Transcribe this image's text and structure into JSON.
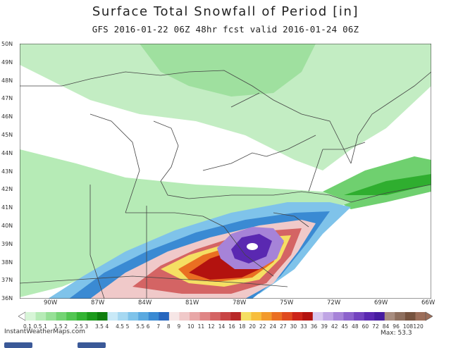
{
  "title": "Surface Total Snowfall of Period [in]",
  "subtitle": "GFS 2016-01-22 06Z 48hr fcst valid 2016-01-24 06Z",
  "latitudes": [
    "50N",
    "49N",
    "48N",
    "47N",
    "46N",
    "45N",
    "44N",
    "43N",
    "42N",
    "41N",
    "40N",
    "39N",
    "38N",
    "37N",
    "36N"
  ],
  "longitudes": [
    "90W",
    "87W",
    "84W",
    "81W",
    "78W",
    "75W",
    "72W",
    "69W",
    "66W"
  ],
  "colorbar": {
    "labels": [
      "0.1",
      "0.5",
      "1",
      "1.5",
      "2",
      "2.5",
      "3",
      "3.5",
      "4",
      "4.5",
      "5",
      "5.5",
      "6",
      "7",
      "8",
      "9",
      "10",
      "11",
      "12",
      "14",
      "16",
      "18",
      "20",
      "22",
      "24",
      "27",
      "30",
      "33",
      "36",
      "39",
      "42",
      "45",
      "48",
      "60",
      "72",
      "84",
      "96",
      "108",
      "120"
    ],
    "colors": [
      "#d7f5d7",
      "#b6ebb6",
      "#96e096",
      "#74d474",
      "#52c652",
      "#33b433",
      "#1b9a1b",
      "#0d7d0d",
      "#c9e9f7",
      "#a6d8f1",
      "#7fc3ea",
      "#5aa9e0",
      "#3a8ad3",
      "#2766be",
      "#f6e6e6",
      "#f0c9c9",
      "#e8a7a7",
      "#df8585",
      "#d46464",
      "#c84545",
      "#b82828",
      "#f5df63",
      "#f7be3d",
      "#f29a2c",
      "#ea6f22",
      "#df4a1e",
      "#cc2418",
      "#b3120f",
      "#d9c8ef",
      "#bfa5e4",
      "#a683d8",
      "#8c62cc",
      "#7343bf",
      "#5a28b1",
      "#461ca0",
      "#a88d7f",
      "#8e6f5e",
      "#76533f",
      "#9c6e5a"
    ]
  },
  "credit": "InstantWeatherMaps.com",
  "max_label": "Max:  53.3"
}
